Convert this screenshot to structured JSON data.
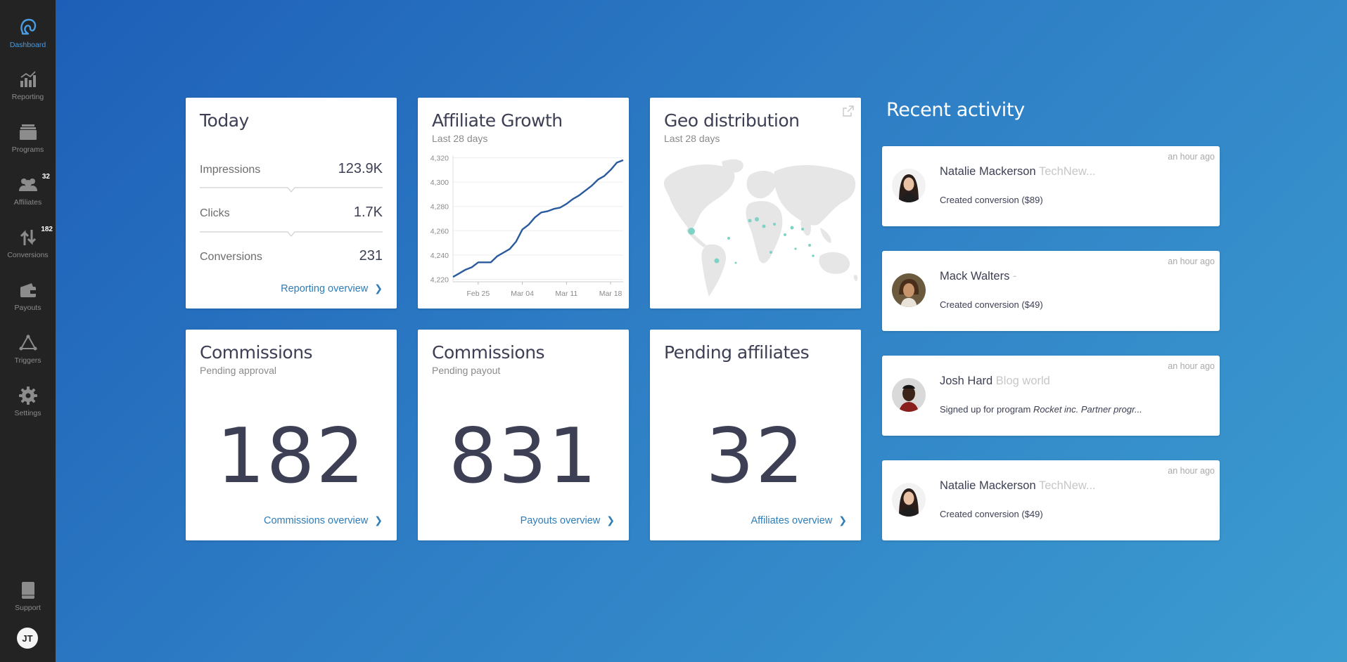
{
  "sidebar": {
    "items": [
      {
        "label": "Dashboard",
        "icon": "logo-icon",
        "badge": ""
      },
      {
        "label": "Reporting",
        "icon": "bar-chart-icon",
        "badge": ""
      },
      {
        "label": "Programs",
        "icon": "stack-icon",
        "badge": ""
      },
      {
        "label": "Affiliates",
        "icon": "users-icon",
        "badge": "32"
      },
      {
        "label": "Conversions",
        "icon": "arrows-icon",
        "badge": "182"
      },
      {
        "label": "Payouts",
        "icon": "wallet-icon",
        "badge": ""
      },
      {
        "label": "Triggers",
        "icon": "triggers-icon",
        "badge": ""
      },
      {
        "label": "Settings",
        "icon": "gear-icon",
        "badge": ""
      }
    ],
    "support_label": "Support",
    "user_initials": "JT"
  },
  "today": {
    "title": "Today",
    "rows": [
      {
        "label": "Impressions",
        "value": "123.9K"
      },
      {
        "label": "Clicks",
        "value": "1.7K"
      },
      {
        "label": "Conversions",
        "value": "231"
      }
    ],
    "link": "Reporting overview"
  },
  "growth": {
    "title": "Affiliate Growth",
    "subtitle": "Last 28 days"
  },
  "chart_data": {
    "type": "line",
    "title": "Affiliate Growth",
    "x": [
      "Feb 21",
      "Feb 22",
      "Feb 23",
      "Feb 24",
      "Feb 25",
      "Feb 26",
      "Feb 27",
      "Feb 28",
      "Mar 01",
      "Mar 02",
      "Mar 03",
      "Mar 04",
      "Mar 05",
      "Mar 06",
      "Mar 07",
      "Mar 08",
      "Mar 09",
      "Mar 10",
      "Mar 11",
      "Mar 12",
      "Mar 13",
      "Mar 14",
      "Mar 15",
      "Mar 16",
      "Mar 17",
      "Mar 18",
      "Mar 19",
      "Mar 20"
    ],
    "series": [
      {
        "values": [
          4222,
          4225,
          4228,
          4230,
          4234,
          4234,
          4234,
          4239,
          4242,
          4245,
          4251,
          4261,
          4265,
          4271,
          4275,
          4276,
          4278,
          4279,
          4282,
          4286,
          4289,
          4293,
          4297,
          4302,
          4305,
          4310,
          4316,
          4318
        ]
      }
    ],
    "x_ticks": [
      "Feb 25",
      "Mar 04",
      "Mar 11",
      "Mar 18"
    ],
    "y_ticks": [
      "4,220",
      "4,240",
      "4,260",
      "4,280",
      "4,300",
      "4,320"
    ],
    "ylim": [
      4218,
      4322
    ],
    "grid": true,
    "line_color": "#2a5a9e"
  },
  "geo": {
    "title": "Geo distribution",
    "subtitle": "Last 28 days",
    "icon": "external-link-icon"
  },
  "commissions_pending": {
    "title": "Commissions",
    "subtitle": "Pending approval",
    "value": "182",
    "link": "Commissions overview"
  },
  "commissions_payout": {
    "title": "Commissions",
    "subtitle": "Pending payout",
    "value": "831",
    "link": "Payouts overview"
  },
  "pending_affiliates": {
    "title": "Pending affiliates",
    "value": "32",
    "link": "Affiliates overview"
  },
  "recent_activity": {
    "title": "Recent activity",
    "items": [
      {
        "name": "Natalie Mackerson",
        "company": "TechNew...",
        "desc": "Created conversion ($89)",
        "desc_em": "",
        "time": "an hour ago"
      },
      {
        "name": "Mack Walters",
        "company": "-",
        "desc": "Created conversion ($49)",
        "desc_em": "",
        "time": "an hour ago"
      },
      {
        "name": "Josh Hard",
        "company": "Blog world",
        "desc": "Signed up for program ",
        "desc_em": "Rocket inc. Partner progr...",
        "time": "an hour ago"
      },
      {
        "name": "Natalie Mackerson",
        "company": "TechNew...",
        "desc": "Created conversion ($49)",
        "desc_em": "",
        "time": "an hour ago"
      }
    ]
  },
  "colors": {
    "accent": "#2f7db8",
    "sidebar_bg": "#232323",
    "active_nav": "#4a9be2",
    "map_dot": "#7fd3c4"
  }
}
